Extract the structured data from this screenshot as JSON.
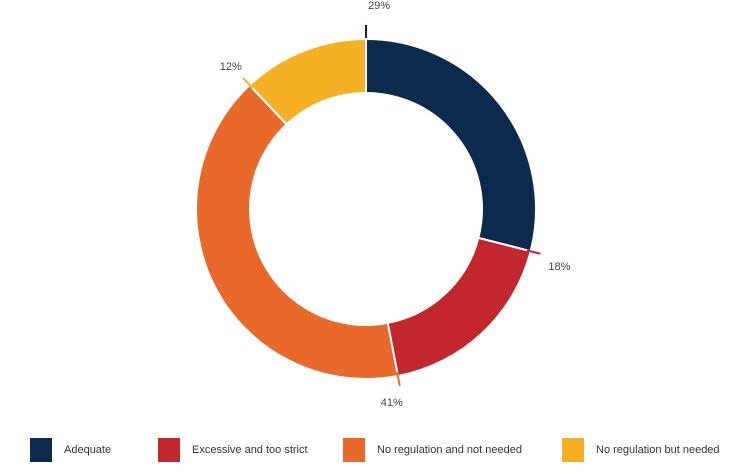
{
  "chart_data": {
    "type": "pie",
    "donut": true,
    "categories": [
      "Adequate",
      "Excessive and too strict",
      "No regulation and not needed",
      "No regulation but needed"
    ],
    "values": [
      29,
      18,
      41,
      12
    ],
    "labels": [
      "29%",
      "18%",
      "41%",
      "12%"
    ],
    "colors": [
      "#0c2a4d",
      "#c2272d",
      "#e8692a",
      "#f6b024"
    ],
    "legend_position": "bottom"
  }
}
